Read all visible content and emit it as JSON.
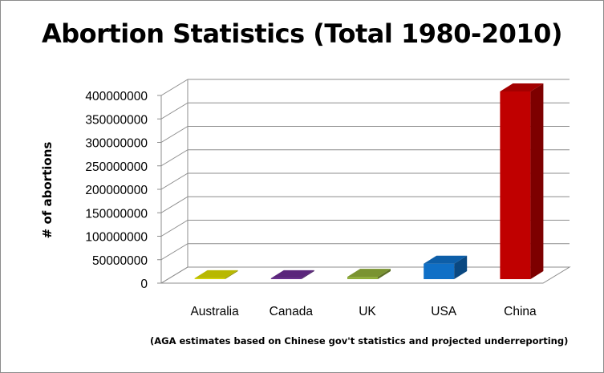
{
  "chart_data": {
    "type": "bar",
    "title": "Abortion Statistics (Total 1980-2010)",
    "ylabel": "# of abortions",
    "xlabel": "",
    "categories": [
      "Australia",
      "Canada",
      "UK",
      "USA",
      "China"
    ],
    "values": [
      2000000,
      2000000,
      5000000,
      33000000,
      400000000
    ],
    "colors": [
      "#d8d800",
      "#6a2c91",
      "#8fad3a",
      "#0f6fc6",
      "#c00000"
    ],
    "ylim": [
      0,
      400000000
    ],
    "yticks": [
      0,
      50000000,
      100000000,
      150000000,
      200000000,
      250000000,
      300000000,
      350000000,
      400000000
    ],
    "ytick_labels": [
      "0",
      "50000000",
      "100000000",
      "150000000",
      "200000000",
      "250000000",
      "300000000",
      "350000000",
      "400000000"
    ],
    "grid": true,
    "three_d": true,
    "legend": "none",
    "footnote": "(AGA estimates based on Chinese gov't statistics and projected underreporting)"
  }
}
